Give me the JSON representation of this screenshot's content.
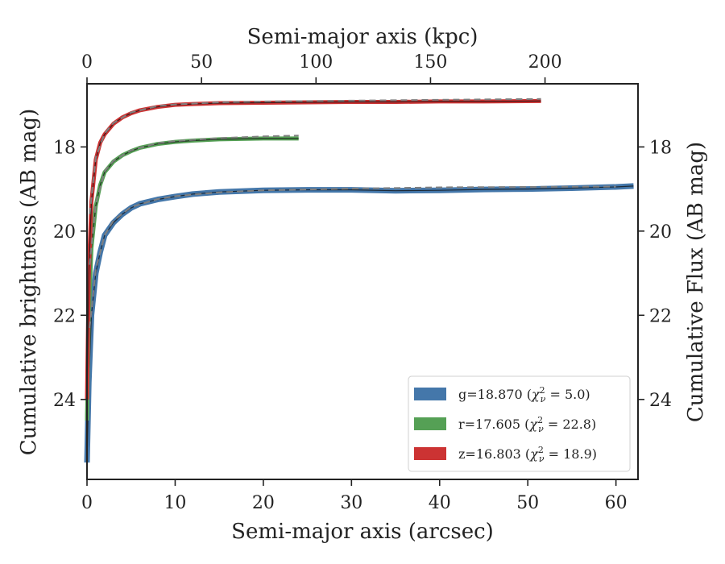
{
  "chart_data": {
    "type": "line",
    "xlabel": "Semi-major axis (arcsec)",
    "x2label": "Semi-major axis (kpc)",
    "ylabel": "Cumulative brightness (AB mag)",
    "y2label": "Cumulative Flux (AB mag)",
    "xlim": [
      0,
      62.5
    ],
    "ylim": [
      25.9,
      16.5
    ],
    "x2lim": [
      0,
      240.6
    ],
    "x_ticks": [
      0,
      10,
      20,
      30,
      40,
      50,
      60
    ],
    "x_tick_labels": [
      "0",
      "10",
      "20",
      "30",
      "40",
      "50",
      "60"
    ],
    "x2_ticks": [
      0,
      50,
      100,
      150,
      200
    ],
    "x2_tick_labels": [
      "0",
      "50",
      "100",
      "150",
      "200"
    ],
    "y_ticks": [
      18,
      20,
      22,
      24
    ],
    "y_tick_labels": [
      "18",
      "20",
      "22",
      "24"
    ],
    "grid": false,
    "legend_position": "bottom-right",
    "legend_entries": [
      "g=18.870",
      "r=17.605",
      "z=16.803"
    ],
    "legend_chi_labels": [
      "5.0",
      "22.8",
      "18.9"
    ],
    "series": [
      {
        "name": "g=18.870",
        "band": "g",
        "color": "#4477aa",
        "x": [
          0,
          0.2,
          0.5,
          1,
          1.5,
          2,
          3,
          4,
          5,
          6,
          8,
          10,
          12,
          15,
          20,
          25,
          30,
          35,
          40,
          45,
          50,
          55,
          60,
          62
        ],
        "y": [
          25.5,
          23.6,
          22.0,
          21.0,
          20.5,
          20.1,
          19.8,
          19.6,
          19.45,
          19.35,
          19.25,
          19.18,
          19.12,
          19.07,
          19.03,
          19.02,
          19.02,
          19.04,
          19.03,
          19.01,
          19.0,
          18.98,
          18.95,
          18.93
        ]
      },
      {
        "name": "r=17.605",
        "band": "r",
        "color": "#55a055",
        "x": [
          0,
          0.2,
          0.5,
          1,
          1.5,
          2,
          3,
          4,
          5,
          6,
          8,
          10,
          12,
          15,
          20,
          24
        ],
        "y": [
          24.5,
          22.0,
          20.4,
          19.4,
          18.9,
          18.6,
          18.35,
          18.2,
          18.1,
          18.02,
          17.93,
          17.88,
          17.85,
          17.82,
          17.8,
          17.8
        ]
      },
      {
        "name": "z=16.803",
        "band": "z",
        "color": "#cc3333",
        "x": [
          0,
          0.2,
          0.5,
          1,
          1.5,
          2,
          3,
          4,
          5,
          6,
          8,
          10,
          12,
          15,
          20,
          25,
          30,
          35,
          40,
          45,
          51.5
        ],
        "y": [
          24.0,
          21.0,
          19.3,
          18.3,
          17.9,
          17.7,
          17.45,
          17.3,
          17.2,
          17.13,
          17.05,
          17.0,
          16.98,
          16.96,
          16.95,
          16.94,
          16.93,
          16.93,
          16.92,
          16.92,
          16.91
        ]
      }
    ],
    "models": [
      {
        "band": "g",
        "x": [
          0.3,
          1,
          2,
          3,
          5,
          8,
          10,
          15,
          20,
          30,
          40,
          50,
          60
        ],
        "y": [
          22.3,
          20.9,
          20.1,
          19.75,
          19.43,
          19.24,
          19.17,
          19.08,
          19.03,
          18.99,
          18.96,
          18.95,
          18.94
        ]
      },
      {
        "band": "r",
        "x": [
          0.3,
          1,
          2,
          3,
          5,
          8,
          10,
          15,
          20,
          24
        ],
        "y": [
          20.8,
          19.35,
          18.58,
          18.33,
          18.08,
          17.91,
          17.86,
          17.79,
          17.75,
          17.73
        ]
      },
      {
        "band": "z",
        "x": [
          0.3,
          1,
          2,
          3,
          5,
          8,
          10,
          15,
          20,
          30,
          40,
          51.5
        ],
        "y": [
          19.6,
          18.25,
          17.68,
          17.43,
          17.18,
          17.03,
          16.99,
          16.94,
          16.92,
          16.9,
          16.88,
          16.86
        ]
      }
    ]
  },
  "colors": {
    "g": "#4477aa",
    "r": "#55a055",
    "z": "#cc3333",
    "model": "#808080",
    "black": "#222222"
  }
}
